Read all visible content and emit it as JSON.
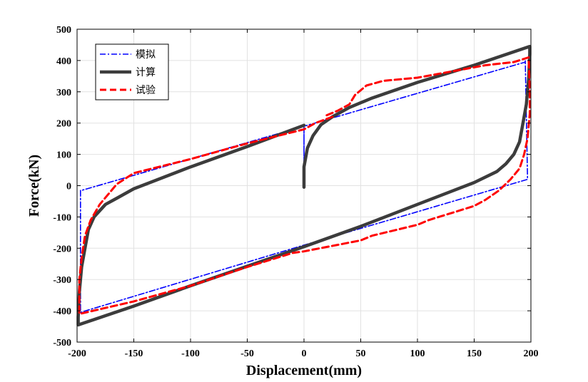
{
  "chart_data": {
    "type": "line",
    "title": "",
    "xlabel": "Displacement(mm)",
    "ylabel": "Force(kN)",
    "xlim": [
      -200,
      200
    ],
    "ylim": [
      -500,
      500
    ],
    "xticks": [
      -200,
      -150,
      -100,
      -50,
      0,
      50,
      100,
      150,
      200
    ],
    "yticks": [
      -500,
      -400,
      -300,
      -200,
      -100,
      0,
      100,
      200,
      300,
      400,
      500
    ],
    "xtick_labels": [
      "-200",
      "-150",
      "-100",
      "-50",
      "0",
      "50",
      "100",
      "150",
      "200"
    ],
    "ytick_labels": [
      "-500",
      "-400",
      "-300",
      "-200",
      "-100",
      "0",
      "100",
      "200",
      "300",
      "400",
      "500"
    ],
    "grid": true,
    "legend_position": "top-left",
    "series": [
      {
        "name": "模拟",
        "color": "#0000ff",
        "style": "dashdot",
        "x": [
          0,
          0,
          0,
          195,
          195,
          197,
          197,
          0,
          -197,
          -197,
          -196,
          -196,
          0,
          0,
          0
        ],
        "y": [
          0,
          100,
          190,
          395,
          400,
          30,
          20,
          -190,
          -405,
          -15,
          -15,
          -15,
          190,
          100,
          0
        ]
      },
      {
        "name": "计算",
        "color": "#3c3c3c",
        "style": "solid",
        "x": [
          0,
          0,
          3,
          8,
          15,
          25,
          40,
          60,
          100,
          150,
          199,
          199,
          198,
          196,
          193,
          190,
          185,
          178,
          170,
          150,
          100,
          50,
          0,
          -100,
          -150,
          -199,
          -199,
          -198,
          -196,
          -193,
          -190,
          -185,
          -175,
          -165,
          -150,
          -100,
          -50,
          0
        ],
        "y": [
          -5,
          60,
          120,
          160,
          195,
          220,
          250,
          280,
          330,
          385,
          445,
          420,
          340,
          260,
          200,
          140,
          100,
          70,
          45,
          10,
          -60,
          -130,
          -195,
          -320,
          -385,
          -445,
          -420,
          -340,
          -260,
          -200,
          -140,
          -100,
          -60,
          -40,
          -10,
          60,
          125,
          193
        ]
      },
      {
        "name": "试验",
        "color": "#ff0000",
        "style": "dashed",
        "x": [
          20,
          30,
          40,
          45,
          55,
          70,
          100,
          130,
          160,
          185,
          198,
          199,
          199,
          197,
          194,
          190,
          182,
          172,
          160,
          150,
          110,
          100,
          60,
          50,
          0,
          -10,
          -50,
          -100,
          -150,
          -180,
          -198,
          -198,
          -196,
          -193,
          -188,
          -180,
          -165,
          -150,
          -100,
          -50,
          0,
          10,
          25
        ],
        "y": [
          225,
          240,
          260,
          290,
          320,
          335,
          345,
          365,
          385,
          395,
          410,
          300,
          230,
          150,
          100,
          55,
          20,
          -15,
          -45,
          -65,
          -110,
          -125,
          -160,
          -175,
          -210,
          -215,
          -260,
          -320,
          -370,
          -395,
          -410,
          -300,
          -230,
          -160,
          -110,
          -60,
          5,
          40,
          85,
          135,
          180,
          200,
          220
        ]
      }
    ]
  }
}
